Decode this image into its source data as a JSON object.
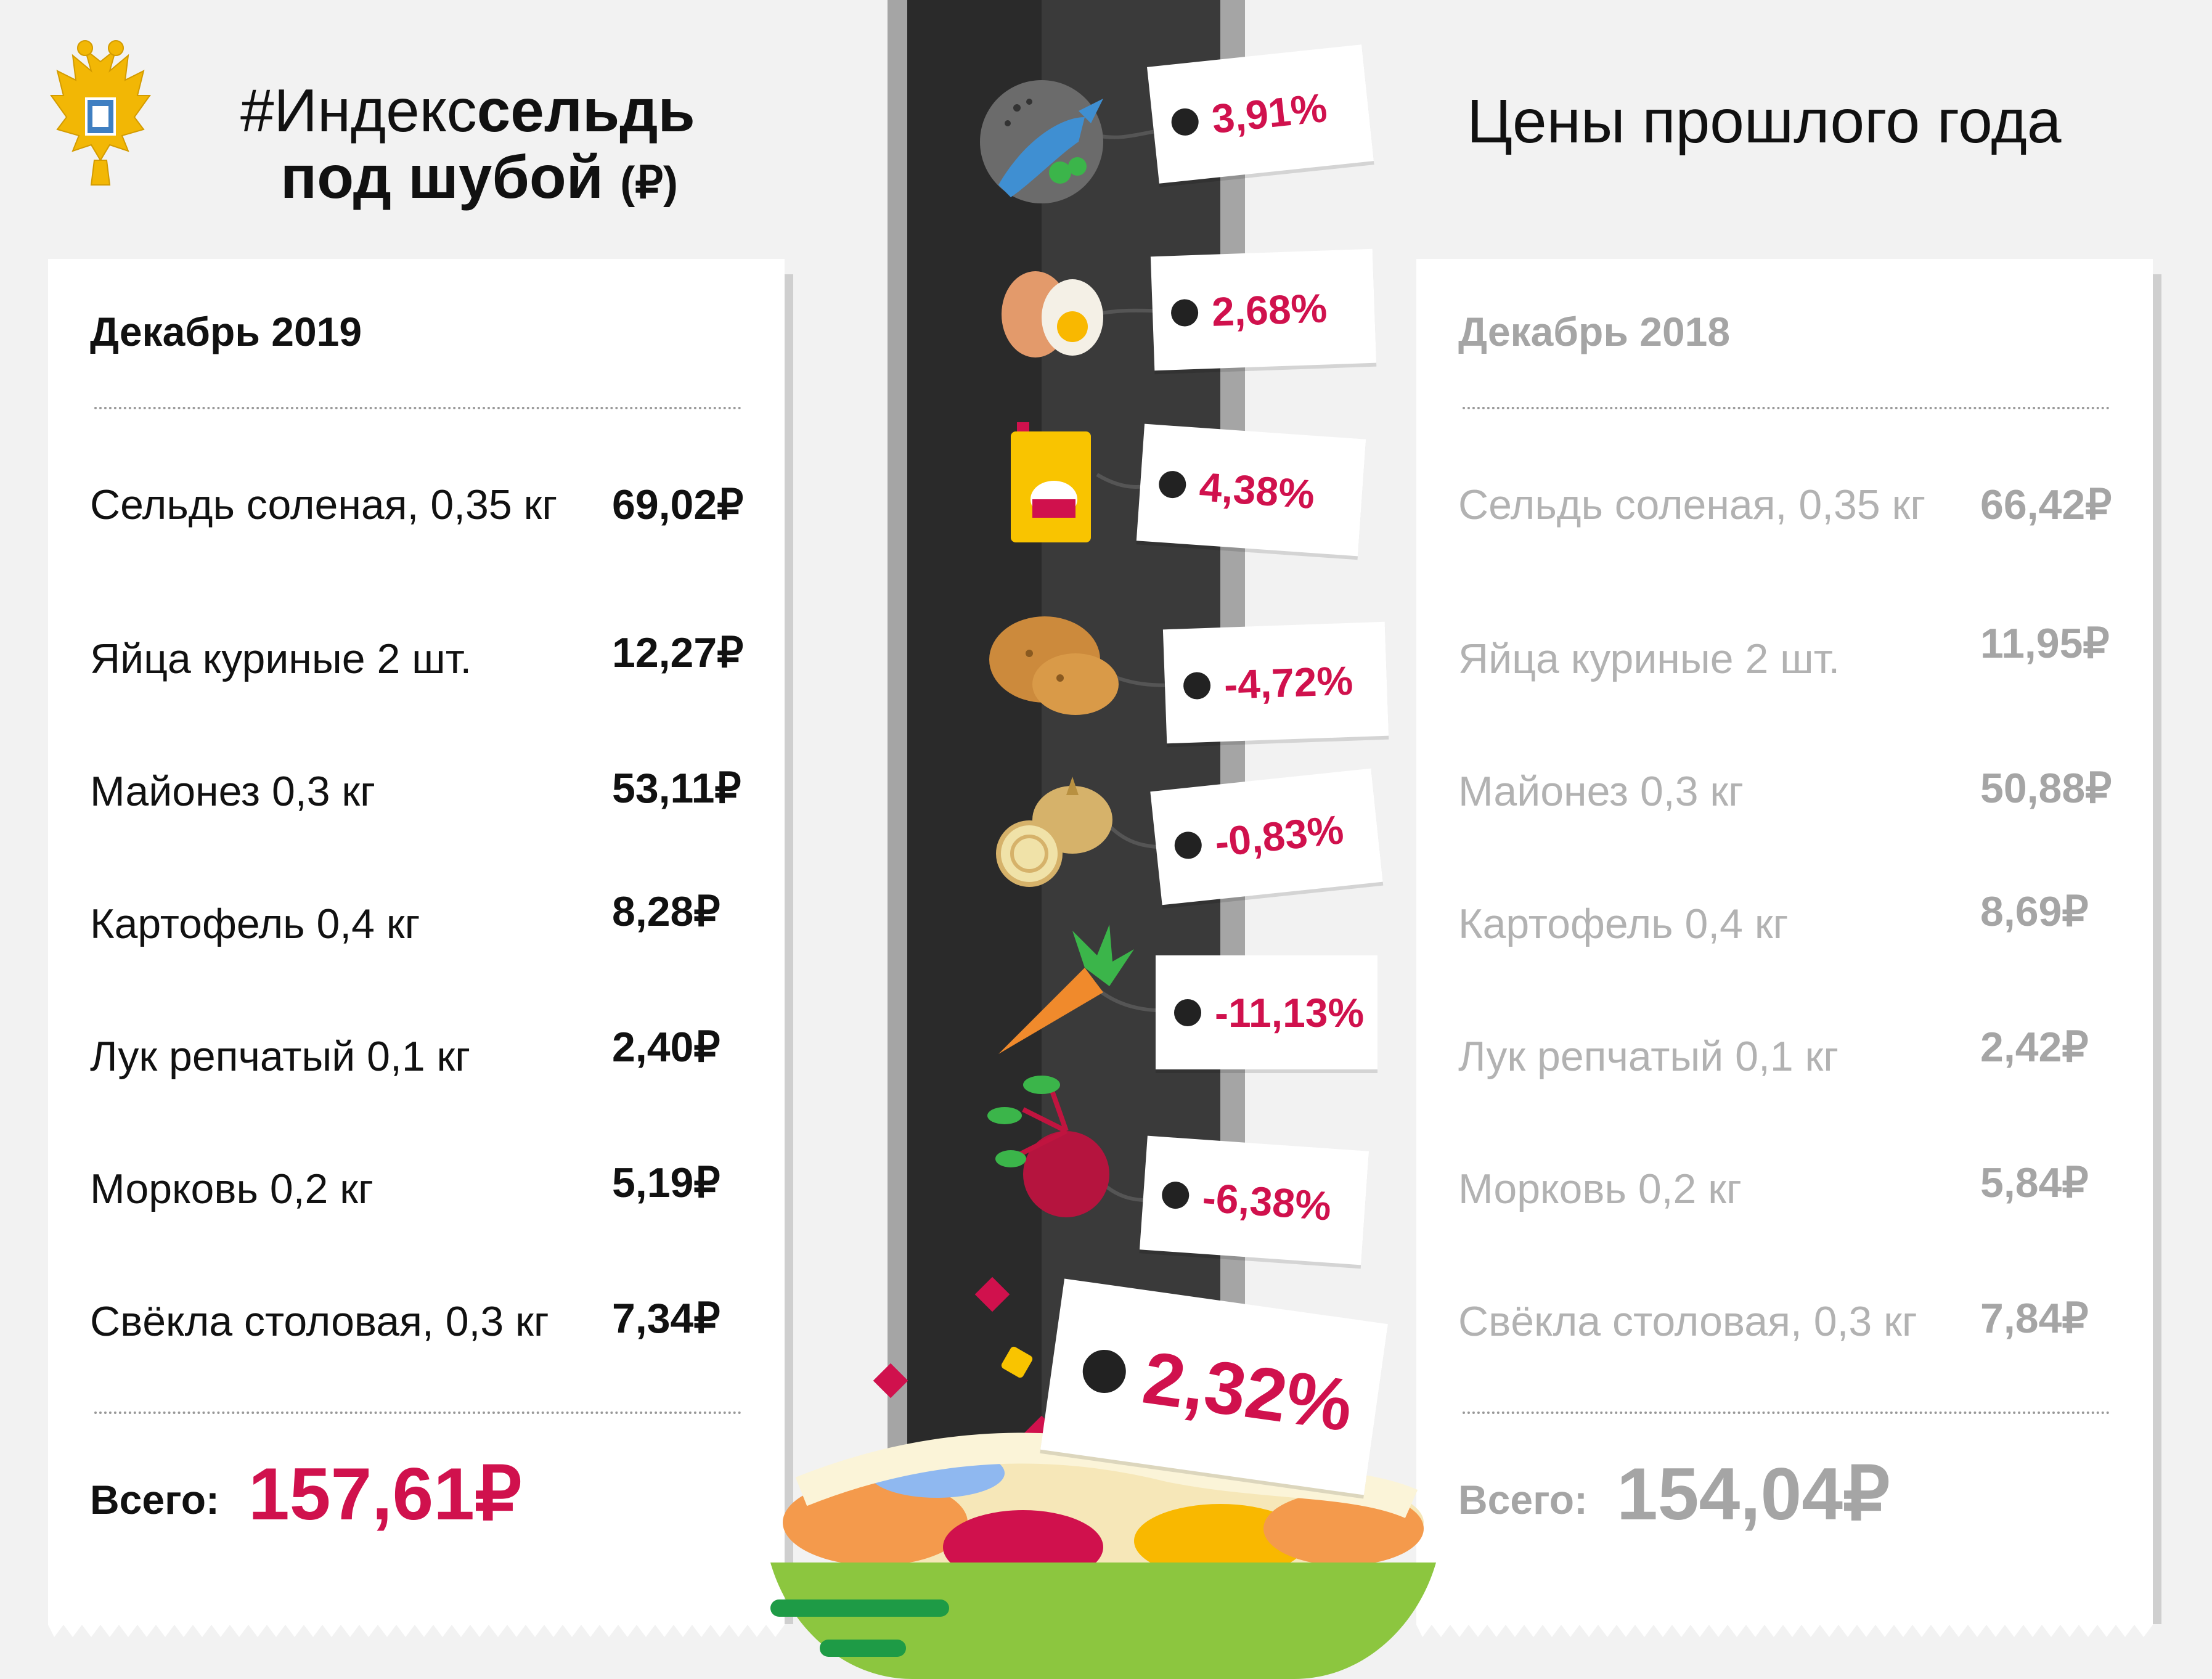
{
  "header": {
    "title_prefix": "#Индекс",
    "title_bold": "сельдь",
    "title_line2": "под шубой",
    "title_currency": "(₽)",
    "prev_title": "Цены прошлого года"
  },
  "current": {
    "month": "Декабрь 2019",
    "items": [
      {
        "name": "Сельдь соленая, 0,35 кг",
        "price": "69,02₽"
      },
      {
        "name": "Яйца куриные 2 шт.",
        "price": "12,27₽"
      },
      {
        "name": "Майонез 0,3 кг",
        "price": "53,11₽"
      },
      {
        "name": "Картофель 0,4 кг",
        "price": "8,28₽"
      },
      {
        "name": "Лук репчатый 0,1 кг",
        "price": "2,40₽"
      },
      {
        "name": "Морковь 0,2 кг",
        "price": "5,19₽"
      },
      {
        "name": "Свёкла столовая, 0,3 кг",
        "price": "7,34₽"
      }
    ],
    "total_label": "Всего:",
    "total": "157,61₽"
  },
  "previous": {
    "month": "Декабрь 2018",
    "items": [
      {
        "name": "Сельдь соленая, 0,35 кг",
        "price": "66,42₽"
      },
      {
        "name": "Яйца куриные 2 шт.",
        "price": "11,95₽"
      },
      {
        "name": "Майонез 0,3 кг",
        "price": "50,88₽"
      },
      {
        "name": "Картофель 0,4 кг",
        "price": "8,69₽"
      },
      {
        "name": "Лук репчатый 0,1 кг",
        "price": "2,42₽"
      },
      {
        "name": "Морковь 0,2 кг",
        "price": "5,84₽"
      },
      {
        "name": "Свёкла столовая, 0,3 кг",
        "price": "7,84₽"
      }
    ],
    "total_label": "Всего:",
    "total": "154,04₽"
  },
  "changes": {
    "herring": "3,91%",
    "eggs": "2,68%",
    "mayonnaise": "4,38%",
    "potato": "-4,72%",
    "onion": "-0,83%",
    "carrot": "-11,13%",
    "beet": "-6,38%",
    "total": "2,32%"
  },
  "icons": [
    "emblem-icon",
    "herring-plate-icon",
    "eggs-icon",
    "mayonnaise-icon",
    "potato-icon",
    "onion-icon",
    "carrot-icon",
    "beet-icon",
    "salad-bowl-icon"
  ],
  "colors": {
    "accent": "#d0114d",
    "muted": "#a5a5a5",
    "dark": "#2a2a2a",
    "bowl": "#8cc63f"
  }
}
